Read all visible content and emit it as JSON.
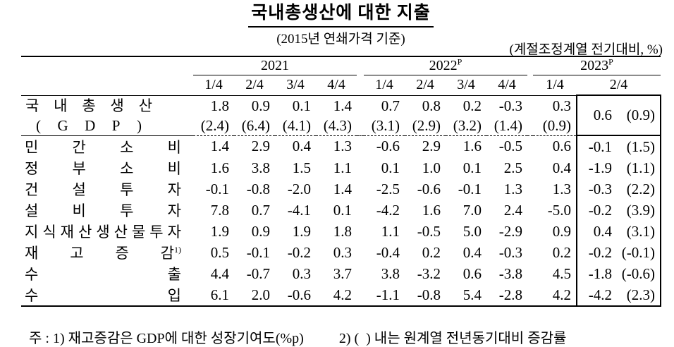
{
  "header": {
    "title": "국내총생산에 대한 지출",
    "subtitle": "(2015년 연쇄가격 기준)",
    "unit_note": "(계절조정계열 전기대비, %)"
  },
  "table": {
    "year_groups": [
      {
        "label": "2021",
        "sup": "",
        "quarters": [
          "1/4",
          "2/4",
          "3/4",
          "4/4"
        ]
      },
      {
        "label": "2022",
        "sup": "P",
        "quarters": [
          "1/4",
          "2/4",
          "3/4",
          "4/4"
        ]
      },
      {
        "label": "2023",
        "sup": "P",
        "quarters": [
          "1/4",
          "2/4"
        ]
      }
    ],
    "rows": [
      {
        "id": "gdp",
        "label": [
          "국",
          "내",
          "총",
          "생",
          "산"
        ],
        "label2": [
          "(",
          "G",
          "D",
          "P",
          ")"
        ],
        "qoq": [
          "1.8",
          "0.9",
          "0.1",
          "1.4",
          "0.7",
          "0.8",
          "0.2",
          "-0.3",
          "0.3"
        ],
        "yoy": [
          "(2.4)",
          "(6.4)",
          "(4.1)",
          "(4.3)",
          "(3.1)",
          "(2.9)",
          "(3.2)",
          "(1.4)",
          "(0.9)"
        ],
        "box": [
          "0.6",
          "(0.9)"
        ]
      },
      {
        "id": "private-consumption",
        "label": [
          "민",
          "간",
          "소",
          "비"
        ],
        "values": [
          "1.4",
          "2.9",
          "0.4",
          "1.3",
          "-0.6",
          "2.9",
          "1.6",
          "-0.5",
          "0.6"
        ],
        "box": [
          "-0.1",
          "(1.5)"
        ]
      },
      {
        "id": "government-consumption",
        "label": [
          "정",
          "부",
          "소",
          "비"
        ],
        "values": [
          "1.6",
          "3.8",
          "1.5",
          "1.1",
          "0.1",
          "1.0",
          "0.1",
          "2.5",
          "0.4"
        ],
        "box": [
          "-1.9",
          "(1.1)"
        ]
      },
      {
        "id": "construction-investment",
        "label": [
          "건",
          "설",
          "투",
          "자"
        ],
        "values": [
          "-0.1",
          "-0.8",
          "-2.0",
          "1.4",
          "-2.5",
          "-0.6",
          "-0.1",
          "1.3",
          "1.3"
        ],
        "box": [
          "-0.3",
          "(2.2)"
        ]
      },
      {
        "id": "facilities-investment",
        "label": [
          "설",
          "비",
          "투",
          "자"
        ],
        "values": [
          "7.8",
          "0.7",
          "-4.1",
          "0.1",
          "-4.2",
          "1.6",
          "7.0",
          "2.4",
          "-5.0"
        ],
        "box": [
          "-0.2",
          "(3.9)"
        ]
      },
      {
        "id": "ip-products-investment",
        "label": [
          "지",
          "식",
          "재",
          "산",
          "생",
          "산",
          "물",
          "투",
          "자"
        ],
        "values": [
          "1.9",
          "0.9",
          "1.9",
          "1.8",
          "1.1",
          "-0.5",
          "5.0",
          "-2.9",
          "0.9"
        ],
        "box": [
          "0.4",
          "(3.1)"
        ]
      },
      {
        "id": "change-in-inventories",
        "label": [
          "재",
          "고",
          "증",
          "감"
        ],
        "label_sup": "1)",
        "values": [
          "0.5",
          "-0.1",
          "-0.2",
          "0.3",
          "-0.4",
          "0.2",
          "0.4",
          "-0.3",
          "0.2"
        ],
        "box": [
          "-0.2",
          "(-0.1)"
        ]
      },
      {
        "id": "exports",
        "label": [
          "수",
          "출"
        ],
        "values": [
          "4.4",
          "-0.7",
          "0.3",
          "3.7",
          "3.8",
          "-3.2",
          "0.6",
          "-3.8",
          "4.5"
        ],
        "box": [
          "-1.8",
          "(-0.6)"
        ]
      },
      {
        "id": "imports",
        "label": [
          "수",
          "입"
        ],
        "values": [
          "6.1",
          "2.0",
          "-0.6",
          "4.2",
          "-1.1",
          "-0.8",
          "5.4",
          "-2.8",
          "4.2"
        ],
        "box": [
          "-4.2",
          "(2.3)"
        ]
      }
    ]
  },
  "footnotes": {
    "note1": "주 : 1) 재고증감은 GDP에 대한 성장기여도(%p)",
    "note2": "2) (  ) 내는 원계열 전년동기대비 증감률"
  }
}
